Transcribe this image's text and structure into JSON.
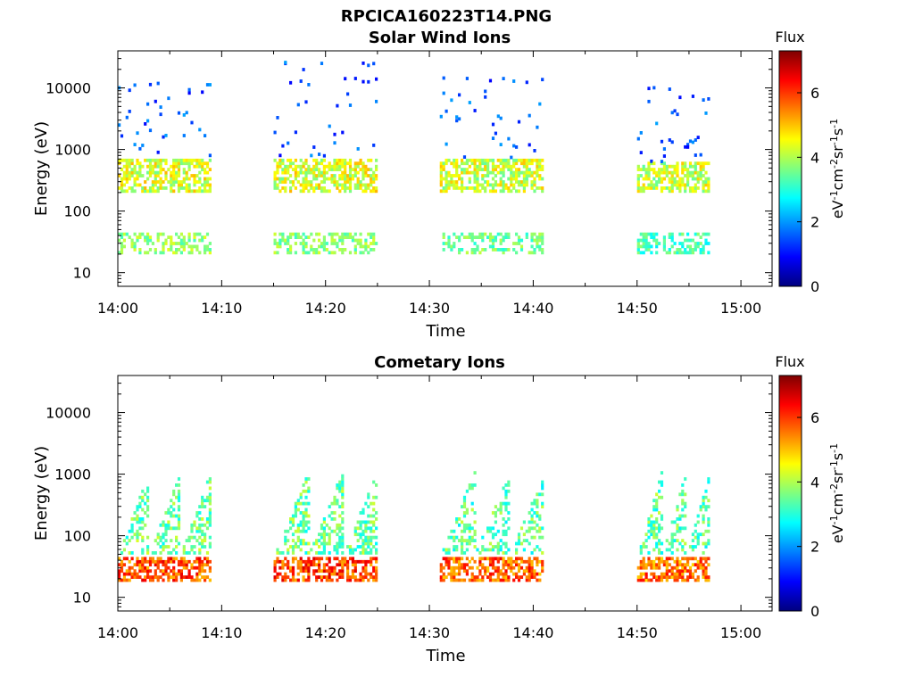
{
  "figure_title": "RPCICA160223T14.PNG",
  "chart_data": [
    {
      "type": "heatmap",
      "title": "Solar Wind Ions",
      "xlabel": "Time",
      "ylabel": "Energy (eV)",
      "xticks": [
        "14:00",
        "14:10",
        "14:20",
        "14:30",
        "14:40",
        "14:50",
        "15:00"
      ],
      "xlim": [
        "14:00",
        "15:03"
      ],
      "yscale": "log",
      "yticks": [
        10,
        100,
        1000,
        10000
      ],
      "ytick_labels": [
        "10",
        "100",
        "1000",
        "10000"
      ],
      "ylim": [
        6,
        40000
      ],
      "colorbar": {
        "title": "Flux",
        "label": "eV-1cm-2sr-1s-1",
        "range": [
          0,
          7.3
        ],
        "ticks": [
          0,
          2,
          4,
          6
        ],
        "tick_labels": [
          "0",
          "2",
          "4",
          "6"
        ],
        "colormap": "jet"
      },
      "bursts": [
        {
          "start": "14:00",
          "end": "14:09",
          "core_energy_range": [
            200,
            700
          ],
          "low_energy_range": [
            20,
            40
          ],
          "core_level": 4.3,
          "low_level": 3.8,
          "sparse_max_energy": 12000
        },
        {
          "start": "14:15",
          "end": "14:25",
          "core_energy_range": [
            200,
            700
          ],
          "low_energy_range": [
            20,
            40
          ],
          "core_level": 4.3,
          "low_level": 3.7,
          "sparse_max_energy": 25000
        },
        {
          "start": "14:31",
          "end": "14:41",
          "core_energy_range": [
            200,
            700
          ],
          "low_energy_range": [
            20,
            40
          ],
          "core_level": 4.2,
          "low_level": 3.5,
          "sparse_max_energy": 15000
        },
        {
          "start": "14:50",
          "end": "14:57",
          "core_energy_range": [
            200,
            600
          ],
          "low_energy_range": [
            20,
            40
          ],
          "core_level": 4.2,
          "low_level": 3.2,
          "sparse_max_energy": 10000
        }
      ]
    },
    {
      "type": "heatmap",
      "title": "Cometary Ions",
      "xlabel": "Time",
      "ylabel": "Energy (eV)",
      "xticks": [
        "14:00",
        "14:10",
        "14:20",
        "14:30",
        "14:40",
        "14:50",
        "15:00"
      ],
      "xlim": [
        "14:00",
        "15:03"
      ],
      "yscale": "log",
      "yticks": [
        10,
        100,
        1000,
        10000
      ],
      "ytick_labels": [
        "10",
        "100",
        "1000",
        "10000"
      ],
      "ylim": [
        6,
        40000
      ],
      "colorbar": {
        "title": "Flux",
        "label": "eV-1cm-2sr-1s-1",
        "range": [
          0,
          7.3
        ],
        "ticks": [
          0,
          2,
          4,
          6
        ],
        "tick_labels": [
          "0",
          "2",
          "4",
          "6"
        ],
        "colormap": "jet"
      },
      "bursts": [
        {
          "start": "14:00",
          "end": "14:09",
          "core_energy_range": [
            18,
            45
          ],
          "high_energy_range": [
            50,
            1200
          ],
          "core_level": 5.8,
          "high_level": 3.5
        },
        {
          "start": "14:15",
          "end": "14:25",
          "core_energy_range": [
            18,
            45
          ],
          "high_energy_range": [
            50,
            1200
          ],
          "core_level": 5.9,
          "high_level": 3.5
        },
        {
          "start": "14:31",
          "end": "14:41",
          "core_energy_range": [
            18,
            45
          ],
          "high_energy_range": [
            50,
            1100
          ],
          "core_level": 5.7,
          "high_level": 3.4
        },
        {
          "start": "14:50",
          "end": "14:57",
          "core_energy_range": [
            18,
            45
          ],
          "high_energy_range": [
            50,
            1200
          ],
          "core_level": 5.6,
          "high_level": 3.4
        }
      ]
    }
  ]
}
